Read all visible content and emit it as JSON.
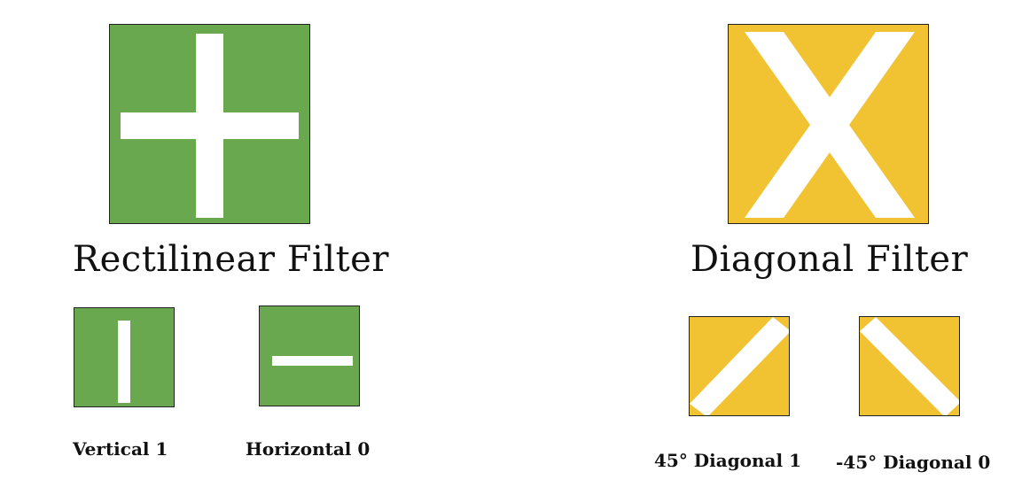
{
  "rectilinear": {
    "title": "Rectilinear Filter",
    "color": "#6aa84f",
    "items": [
      {
        "label": "Vertical 1"
      },
      {
        "label": "Horizontal 0"
      }
    ]
  },
  "diagonal": {
    "title": "Diagonal Filter",
    "color": "#f1c232",
    "items": [
      {
        "label": "45° Diagonal 1"
      },
      {
        "label": "-45° Diagonal 0"
      }
    ]
  }
}
